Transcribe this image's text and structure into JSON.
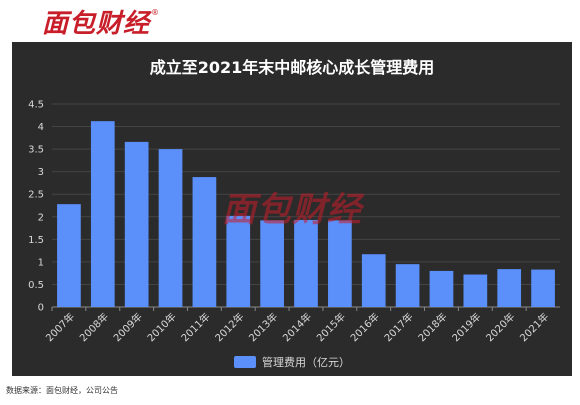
{
  "logo": {
    "text": "面包财经",
    "reg": "®"
  },
  "watermark": "面包财经",
  "source_note": "数据来源：面包财经，公司公告",
  "colors": {
    "background": "#2b2b2b",
    "bar": "#5b8ff9",
    "axis_text": "#d8d8d8",
    "grid": "#444444",
    "logo": "#c81e2a"
  },
  "chart_data": {
    "type": "bar",
    "title": "成立至2021年末中邮核心成长管理费用",
    "xlabel": "",
    "ylabel": "",
    "ylim": [
      0,
      4.5
    ],
    "yticks": [
      0,
      0.5,
      1,
      1.5,
      2,
      2.5,
      3,
      3.5,
      4,
      4.5
    ],
    "grid": true,
    "legend_position": "bottom",
    "categories": [
      "2007年",
      "2008年",
      "2009年",
      "2010年",
      "2011年",
      "2012年",
      "2013年",
      "2014年",
      "2015年",
      "2016年",
      "2017年",
      "2018年",
      "2019年",
      "2020年",
      "2021年"
    ],
    "series": [
      {
        "name": "管理费用（亿元）",
        "color": "#5b8ff9",
        "values": [
          2.28,
          4.12,
          3.66,
          3.5,
          2.88,
          2.02,
          1.92,
          1.93,
          1.92,
          1.17,
          0.95,
          0.8,
          0.72,
          0.84,
          0.83
        ]
      }
    ]
  }
}
